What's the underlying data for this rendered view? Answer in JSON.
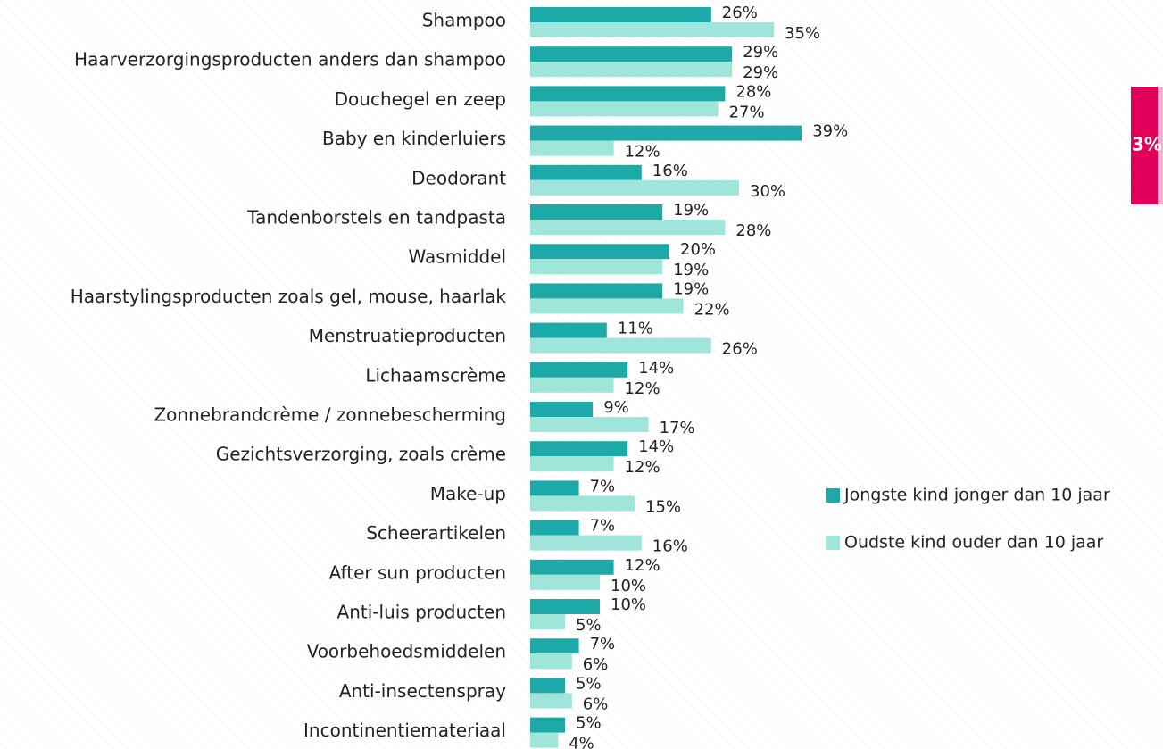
{
  "chart_data": {
    "type": "bar",
    "orientation": "horizontal",
    "categories": [
      "Shampoo",
      "Haarverzorgingsproducten anders dan shampoo",
      "Douchegel en zeep",
      "Baby en kinderluiers",
      "Deodorant",
      "Tandenborstels en tandpasta",
      "Wasmiddel",
      "Haarstylingsproducten zoals gel, mouse, haarlak",
      "Menstruatieproducten",
      "Lichaamscrème",
      "Zonnebrandcrème / zonnebescherming",
      "Gezichtsverzorging, zoals crème",
      "Make-up",
      "Scheerartikelen",
      "After sun producten",
      "Anti-luis producten",
      "Voorbehoedsmiddelen",
      "Anti-insectenspray",
      "Incontinentiemateriaal"
    ],
    "series": [
      {
        "name": "Jongste kind jonger dan 10 jaar",
        "color": "#1ea9a9",
        "values": [
          26,
          29,
          28,
          39,
          16,
          19,
          20,
          19,
          11,
          14,
          9,
          14,
          7,
          7,
          12,
          10,
          7,
          5,
          5
        ],
        "value_labels": [
          "26%",
          "29%",
          "28%",
          "39%",
          "16%",
          "19%",
          "20%",
          "19%",
          "11%",
          "14%",
          "9%",
          "14%",
          "7%",
          "7%",
          "12%",
          "10%",
          "7%",
          "5%",
          "5%"
        ]
      },
      {
        "name": "Oudste kind ouder dan 10 jaar",
        "color": "#9fe5da",
        "values": [
          35,
          29,
          27,
          12,
          30,
          28,
          19,
          22,
          26,
          12,
          17,
          12,
          15,
          16,
          10,
          5,
          6,
          6,
          4
        ],
        "value_labels": [
          "35%",
          "29%",
          "27%",
          "12%",
          "30%",
          "28%",
          "19%",
          "22%",
          "26%",
          "12%",
          "17%",
          "12%",
          "15%",
          "16%",
          "10%",
          "5%",
          "6%",
          "6%",
          "4%"
        ]
      }
    ],
    "legend": "right",
    "annotation": "3%"
  }
}
